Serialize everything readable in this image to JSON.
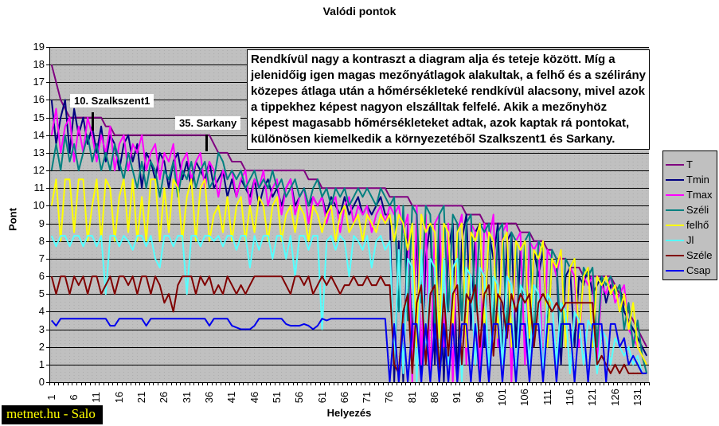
{
  "annotation": {
    "text": "Rendkívül nagy a kontraszt a diagram alja és teteje között. Míg a jelenidőig igen magas mezőnyátlagok alakultak, a felhő és a szélirány közepes átlaga után a hőmérsékleteké rendkívül alacsony, mivel azok a tippekhez képest nagyon elszálltak felfelé. Akik a mezőnyhöz képest magasabb hőmérsékleteket adtak, azok kaptak rá pontokat, különösen kiemelkedik a környezetéből Szalkszent1 és Sarkany."
  },
  "callouts": [
    {
      "label": "10. Szalkszent1"
    },
    {
      "label": "35. Sarkany"
    }
  ],
  "watermark": {
    "text": "metnet.hu - Salo"
  },
  "chart_data": {
    "type": "line",
    "title": "Valódi pontok",
    "xlabel": "Helyezés",
    "ylabel": "Pont",
    "ylim": [
      0,
      19
    ],
    "grid": "horizontal-solid-black, vertical-dotted-minor",
    "plot_bg": "#C0C0C0",
    "legend_position": "right",
    "x_start": 1,
    "x_count": 133,
    "y_tick_labels": [
      19,
      18,
      17,
      16,
      15,
      14,
      13,
      12,
      11,
      10,
      9,
      8,
      7,
      6,
      5,
      4,
      3,
      2,
      1,
      0
    ],
    "x_tick_labels": [
      1,
      6,
      11,
      16,
      21,
      26,
      31,
      36,
      41,
      46,
      51,
      56,
      61,
      66,
      71,
      76,
      81,
      86,
      91,
      96,
      101,
      106,
      111,
      116,
      121,
      126,
      131
    ],
    "series": [
      {
        "name": "T",
        "color": "#800080",
        "values": [
          18,
          17,
          16,
          15.5,
          15,
          15,
          15,
          15,
          15,
          15,
          15,
          15,
          14.5,
          14.5,
          14,
          14,
          14,
          14,
          14,
          14,
          14,
          14,
          14,
          14,
          14,
          14,
          14,
          14,
          14,
          14,
          14,
          14,
          14,
          14,
          14,
          14,
          13.5,
          13,
          13,
          13,
          12.5,
          12.5,
          12.5,
          12,
          12,
          12,
          12,
          12,
          12,
          12,
          12,
          12,
          12,
          12,
          12,
          12,
          12,
          11.5,
          11.5,
          11.5,
          11,
          11,
          11,
          11,
          11,
          11,
          11,
          11,
          11,
          11,
          11,
          11,
          11,
          11,
          11,
          10.5,
          10.5,
          10.5,
          10.5,
          10.5,
          10,
          10,
          10,
          10,
          10,
          10,
          10,
          10,
          10,
          10,
          10,
          10,
          9.5,
          9.5,
          9.5,
          9.5,
          9,
          9,
          9,
          9,
          9,
          9,
          9,
          9,
          8.5,
          8.5,
          8.5,
          8,
          8,
          8,
          7.5,
          7.5,
          7,
          7,
          7,
          6.5,
          6.5,
          6.5,
          6,
          6,
          6,
          6,
          6,
          6,
          6,
          5.5,
          5,
          4.5,
          4,
          3.5,
          3,
          2.5,
          2
        ]
      },
      {
        "name": "Tmin",
        "color": "#000080",
        "values": [
          16,
          13.5,
          15,
          16,
          13,
          15.5,
          14,
          15,
          13.5,
          14.5,
          13,
          14.5,
          12.5,
          14,
          13.5,
          12,
          13.5,
          14,
          12.5,
          13.5,
          11,
          13,
          12.5,
          11.5,
          13,
          12.5,
          11,
          12.5,
          13,
          11.5,
          12.5,
          11,
          12.5,
          12,
          11.5,
          12.5,
          11,
          11.5,
          12,
          10.5,
          11.5,
          10.5,
          11.5,
          11,
          10.5,
          11.5,
          10,
          11,
          11.5,
          10.5,
          11,
          10,
          11,
          11.5,
          10,
          10.5,
          11,
          10,
          10.5,
          10,
          10.5,
          9.5,
          10.5,
          10,
          9.5,
          10.5,
          9.5,
          10,
          10.5,
          9.5,
          10,
          9.5,
          10,
          10.5,
          9.5,
          9.5,
          0,
          8,
          0,
          9,
          2,
          8.5,
          0,
          7,
          9,
          1,
          8.5,
          0,
          7.5,
          9,
          0,
          8,
          9.5,
          3,
          8.5,
          9,
          2,
          8.5,
          7,
          9,
          1,
          8,
          8.5,
          2,
          7.5,
          8,
          1.5,
          7.5,
          6,
          7.5,
          2,
          7,
          6.5,
          1,
          6,
          6.5,
          2,
          6,
          5.5,
          6.5,
          5,
          5.5,
          6,
          4.5,
          5.5,
          5,
          5.5,
          4,
          3.5,
          3,
          2.5,
          2,
          1.5
        ]
      },
      {
        "name": "Tmax",
        "color": "#FF00FF",
        "values": [
          14,
          15.5,
          13,
          14.5,
          15,
          12.5,
          14.5,
          13,
          15,
          14,
          12.5,
          14,
          13,
          14.5,
          12,
          13.5,
          14,
          12,
          13.5,
          13,
          14,
          12,
          13,
          13.5,
          11.5,
          13,
          12.5,
          13.5,
          11,
          12.5,
          13,
          11.5,
          12.5,
          13,
          11,
          12.5,
          12,
          10.5,
          12,
          11.5,
          12,
          10.5,
          11.5,
          12,
          10,
          11.5,
          11,
          12,
          10,
          11,
          11.5,
          9.5,
          11,
          11.5,
          9.5,
          10.5,
          11,
          9,
          10.5,
          10,
          10.5,
          9,
          10,
          10.5,
          8.5,
          10,
          10.5,
          9,
          10,
          9.5,
          10,
          8.5,
          9.5,
          10,
          9,
          10,
          9.5,
          10,
          8.5,
          9.5,
          0,
          10,
          1,
          9.5,
          0,
          9,
          9.5,
          2,
          9,
          0,
          8.5,
          9.5,
          1,
          9,
          8.5,
          0,
          9,
          8,
          9.5,
          2,
          8.5,
          9,
          0,
          8,
          8.5,
          1,
          8,
          7.5,
          8,
          0,
          7.5,
          7,
          6,
          7.5,
          2,
          6.5,
          6,
          2,
          6,
          5.5,
          6,
          1,
          5.5,
          5,
          6,
          4.5,
          5,
          5.5,
          3,
          2.5,
          2,
          1.5,
          1
        ]
      },
      {
        "name": "Széli",
        "color": "#008080",
        "values": [
          12,
          13.5,
          12,
          14,
          12.5,
          13.5,
          12,
          13,
          14,
          12.5,
          13.5,
          12,
          13,
          12,
          13.5,
          12.5,
          11.5,
          13,
          12,
          11,
          12.5,
          11,
          12.5,
          12,
          10.5,
          12,
          11.5,
          12.5,
          10.5,
          12,
          11.5,
          12.5,
          11,
          12,
          12.5,
          11,
          11.5,
          13,
          12.5,
          11.5,
          12,
          11.5,
          12,
          11,
          11.5,
          12,
          11,
          11.5,
          11,
          12,
          11,
          11.5,
          10.5,
          11,
          11.5,
          10.5,
          11,
          10,
          11,
          11.5,
          10.5,
          11,
          10,
          11,
          10.5,
          11,
          10,
          10.5,
          11,
          10.5,
          11,
          10.5,
          10,
          11,
          10.5,
          10,
          10.5,
          4,
          10,
          3.5,
          10,
          9.5,
          4.5,
          10,
          9.5,
          3,
          9.5,
          10,
          4,
          9.5,
          9,
          3.5,
          9,
          9.5,
          4,
          9,
          8.5,
          9,
          3,
          8.5,
          9,
          2.5,
          8.5,
          8,
          3,
          8,
          8.5,
          2,
          8,
          7.5,
          3,
          7.5,
          7,
          2,
          7,
          6.5,
          7,
          2.5,
          6.5,
          6,
          6.5,
          2,
          6,
          5.5,
          6,
          5,
          5.5,
          3,
          4.5,
          2,
          3.5,
          1.5,
          0.5
        ]
      },
      {
        "name": "felhő",
        "color": "#FFFF00",
        "values": [
          10,
          11.5,
          8,
          11.5,
          11.5,
          8.5,
          11.5,
          11.5,
          8,
          10,
          11.5,
          8,
          11.5,
          11,
          8,
          10.5,
          11.5,
          8.5,
          11.5,
          8,
          10.5,
          8,
          11.5,
          11.5,
          8,
          11,
          8.5,
          11.5,
          11,
          8,
          10.5,
          11.5,
          8,
          11,
          11.5,
          8,
          9.5,
          10,
          8.5,
          10.5,
          8,
          10,
          10.5,
          8,
          10,
          8.5,
          10.5,
          10,
          8,
          10,
          10.5,
          8,
          9.5,
          10,
          8.5,
          10,
          9.5,
          8,
          10,
          9.5,
          8.5,
          9.5,
          10,
          8,
          9.5,
          10,
          8.5,
          9,
          9.5,
          8,
          9.5,
          9,
          8.5,
          9.5,
          9,
          9.5,
          8,
          9.5,
          9,
          7.5,
          9,
          2,
          9.5,
          8.5,
          9,
          8.5,
          2.5,
          9,
          8.5,
          3,
          8.5,
          9,
          2,
          8.5,
          8,
          9,
          3,
          8.5,
          8,
          2.5,
          8,
          8.5,
          2,
          8,
          7.5,
          8,
          2.5,
          7.5,
          7,
          8,
          2,
          7,
          6.5,
          7.5,
          2,
          6.5,
          7,
          2.5,
          6,
          6.5,
          2,
          6,
          5.5,
          6,
          5,
          5.5,
          4,
          5,
          3,
          4.5,
          2,
          1.5,
          1
        ]
      },
      {
        "name": "Jl",
        "color": "#55FFFF",
        "values": [
          8.3,
          7.7,
          8.3,
          8.3,
          7.7,
          8.3,
          8.3,
          7.7,
          8.3,
          8.3,
          7.7,
          8.3,
          5,
          8.3,
          8.3,
          7.7,
          8.3,
          8,
          7.5,
          8.3,
          8.3,
          7.7,
          8.3,
          7,
          6.5,
          8.3,
          8.3,
          7.7,
          8.3,
          8.3,
          5,
          8.3,
          8.3,
          7.7,
          8.3,
          8.3,
          8,
          8.3,
          7.7,
          8.3,
          8.3,
          7.5,
          8.3,
          8.3,
          6.5,
          8.3,
          7.5,
          8.3,
          8.3,
          7,
          8.3,
          8.3,
          7,
          8.3,
          6,
          8.3,
          8.3,
          7.5,
          8.3,
          8.3,
          3,
          8,
          8.3,
          7.5,
          8.3,
          8,
          6,
          8.3,
          8,
          7.5,
          8.3,
          6.5,
          8,
          8.3,
          7.5,
          8,
          1,
          7.5,
          0.5,
          7,
          6.5,
          0,
          7.5,
          1,
          7,
          6.5,
          0.5,
          7,
          1,
          6.5,
          7,
          0,
          6.5,
          6,
          1,
          6.5,
          6,
          0.5,
          6,
          5.5,
          1,
          6,
          5.5,
          0,
          5.5,
          5,
          1,
          5.5,
          5,
          0.5,
          5,
          4.5,
          1,
          4.5,
          4,
          0.5,
          4,
          3.5,
          1,
          3.5,
          3,
          0.5,
          3,
          2.5,
          1,
          2.5,
          2,
          1.5,
          2,
          1,
          1.5,
          0.5,
          0.5
        ]
      },
      {
        "name": "Széle",
        "color": "#800000",
        "values": [
          6,
          5,
          6,
          6,
          5,
          6,
          5.5,
          6,
          5,
          6,
          6,
          5,
          5.5,
          6,
          5,
          6,
          6,
          5.5,
          6,
          5,
          6,
          6,
          5,
          6,
          5.5,
          4.5,
          5,
          4,
          5.5,
          6,
          6,
          6,
          5,
          6,
          5.5,
          6,
          5,
          5.5,
          5,
          6,
          5.5,
          5,
          5.5,
          5,
          5.5,
          6,
          6,
          6,
          6,
          6,
          6,
          6,
          5.5,
          5,
          6,
          6,
          5.5,
          6,
          5,
          5.5,
          6,
          5.5,
          6,
          5.5,
          5,
          5.5,
          5.5,
          6,
          5.5,
          5.5,
          6,
          5.5,
          5.5,
          6,
          5.5,
          5.5,
          1,
          0.5,
          4,
          5,
          0.5,
          4.5,
          5.5,
          1,
          5,
          5.5,
          0.5,
          5,
          1.5,
          5,
          5.5,
          1,
          5,
          4.5,
          5.5,
          2,
          5,
          5.5,
          1.5,
          5,
          4.5,
          2.5,
          5,
          4,
          5,
          4.5,
          5,
          2,
          4.5,
          5,
          4.5,
          4,
          4.5,
          4,
          4.5,
          4.5,
          4.5,
          4.5,
          4.5,
          4.5,
          4.5,
          1,
          1.5,
          1,
          0.5,
          1,
          0.5,
          1,
          0.5,
          0.5,
          0.5,
          0.5,
          0.5
        ]
      },
      {
        "name": "Csap",
        "color": "#0000EE",
        "values": [
          3.5,
          3.2,
          3.6,
          3.6,
          3.6,
          3.6,
          3.6,
          3.6,
          3.6,
          3.6,
          3.6,
          3.6,
          3.6,
          3.2,
          3.2,
          3.6,
          3.6,
          3.6,
          3.6,
          3.6,
          3.6,
          3.2,
          3.6,
          3.6,
          3.6,
          3.6,
          3.6,
          3.6,
          3.6,
          3.6,
          3.6,
          3.6,
          3.6,
          3.6,
          3.6,
          3.2,
          3.6,
          3.6,
          3.6,
          3.6,
          3.2,
          3.1,
          3,
          3,
          3,
          3.2,
          3.6,
          3.6,
          3.6,
          3.6,
          3.6,
          3.6,
          3.3,
          3.2,
          3.2,
          3.2,
          3.3,
          3.2,
          3,
          3.2,
          3.6,
          3.5,
          3.6,
          3.6,
          3.6,
          3.6,
          3.6,
          3.6,
          3.6,
          3.6,
          3.6,
          3.6,
          3.6,
          3.6,
          3.6,
          0,
          3.3,
          0,
          3.3,
          0,
          3.3,
          3.3,
          0,
          3.3,
          0,
          3.3,
          0,
          3.3,
          0,
          3.3,
          0,
          3.3,
          3.3,
          0,
          3.3,
          0,
          3.3,
          0,
          3.3,
          3.3,
          0,
          3.3,
          3.3,
          0,
          3.3,
          3.3,
          0,
          3.3,
          3.3,
          0,
          3.3,
          3.3,
          0,
          3.3,
          3.3,
          3.3,
          0,
          3.3,
          3.3,
          0,
          3.3,
          3.3,
          3.3,
          0,
          3.3,
          3.3,
          2,
          2.5,
          1,
          1.5,
          1,
          0.5,
          0.5
        ]
      }
    ]
  }
}
